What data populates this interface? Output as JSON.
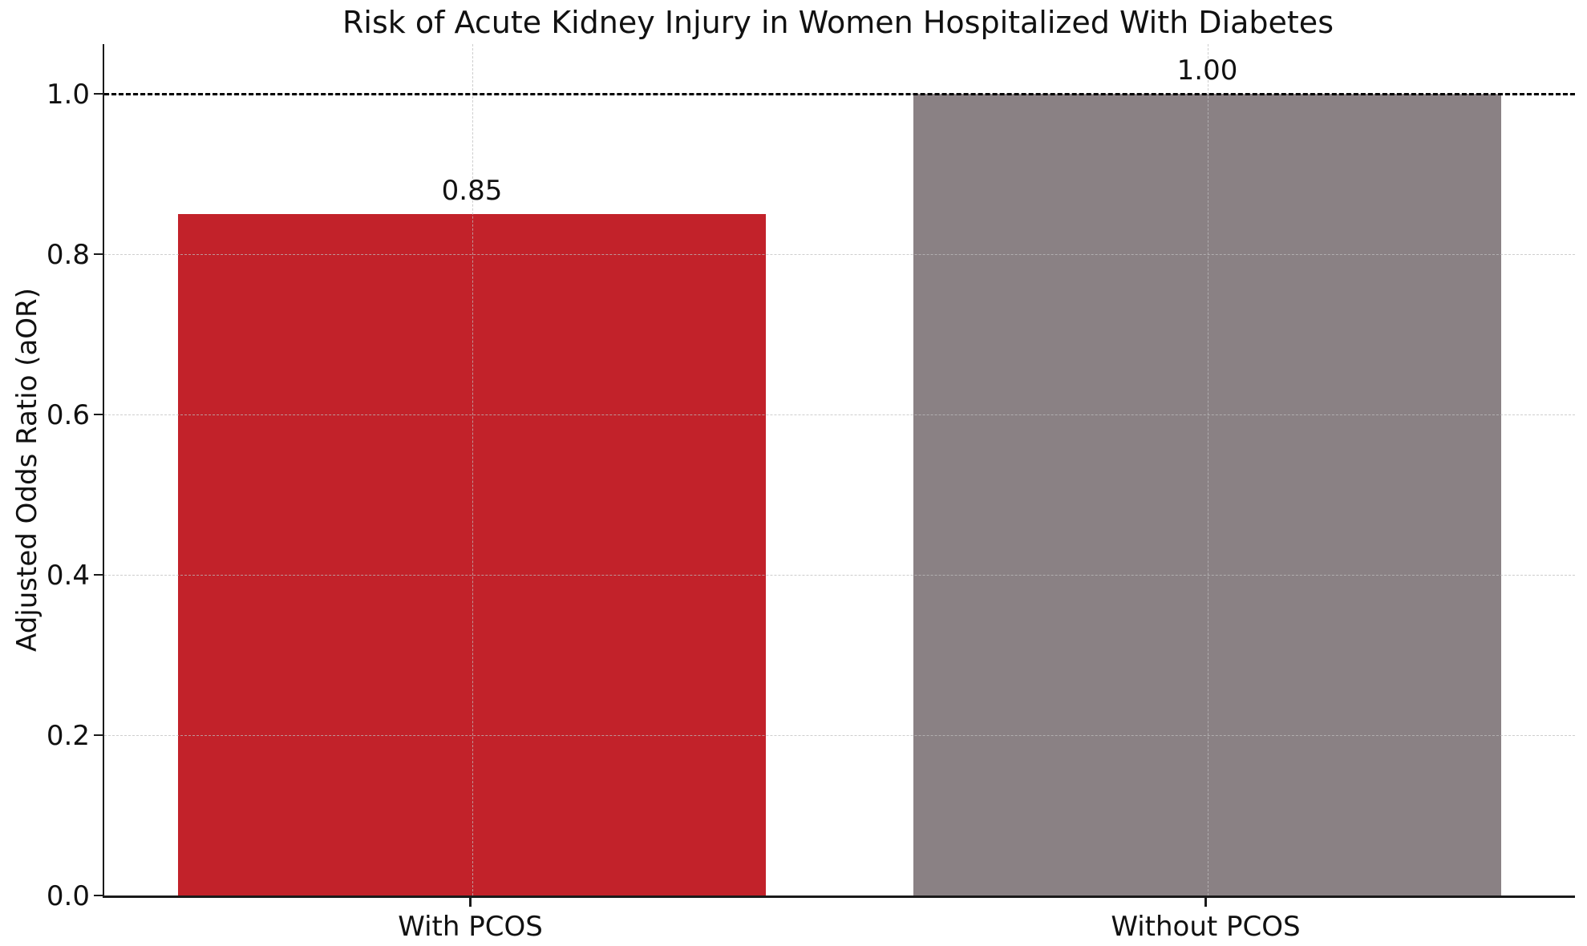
{
  "chart_data": {
    "type": "bar",
    "title": "Risk of Acute Kidney Injury in Women Hospitalized With Diabetes",
    "xlabel": "",
    "ylabel": "Adjusted Odds Ratio (aOR)",
    "categories": [
      "With PCOS",
      "Without PCOS"
    ],
    "values": [
      0.85,
      1.0
    ],
    "value_labels": [
      "0.85",
      "1.00"
    ],
    "bar_colors": [
      "#c2222a",
      "#8a8184"
    ],
    "bar_width_fraction": 0.8,
    "ylim": [
      0.0,
      1.062
    ],
    "yticks": [
      0.0,
      0.2,
      0.4,
      0.6,
      0.8,
      1.0
    ],
    "ytick_labels": [
      "0.0",
      "0.2",
      "0.4",
      "0.6",
      "0.8",
      "1.0"
    ],
    "grid": true,
    "grid_style": "dashed",
    "grid_color": "#bebebe",
    "reference_line": {
      "value": 1.0,
      "style": "dashed",
      "color": "#000000"
    },
    "legend": null,
    "background_color": "#ffffff",
    "text_color": "#111111"
  }
}
